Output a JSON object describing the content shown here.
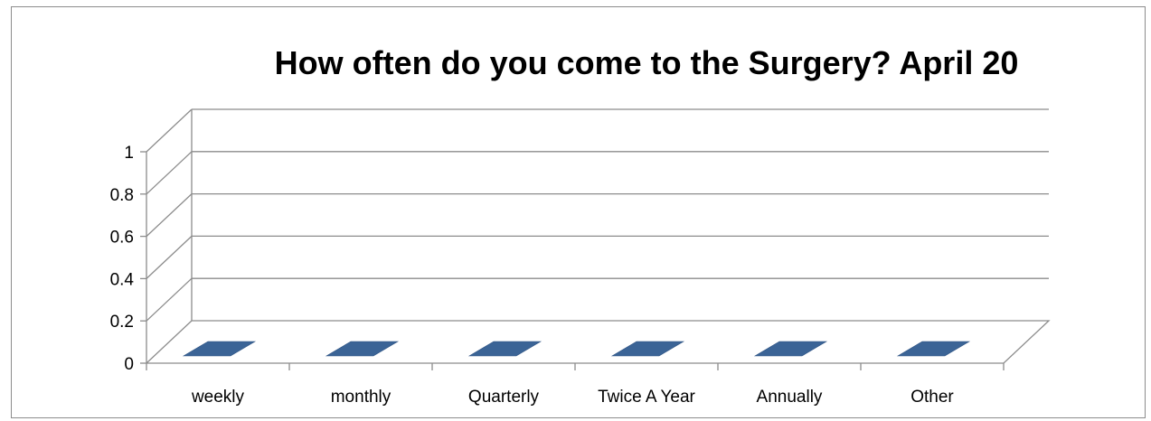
{
  "chart_data": {
    "type": "bar",
    "style": "3d-column",
    "title": "How often do you come to the Surgery? April 20",
    "categories": [
      "weekly",
      "monthly",
      "Quarterly",
      "Twice A Year",
      "Annually",
      "Other"
    ],
    "values": [
      0,
      0,
      0,
      0,
      0,
      0
    ],
    "ylim": [
      0,
      1
    ],
    "yticks": [
      "0",
      "0.2",
      "0.4",
      "0.6",
      "0.8",
      "1"
    ],
    "grid": true,
    "legend": "none",
    "colors": {
      "bar": "#3b6496",
      "gridline": "#8c8c8c",
      "axis": "#8c8c8c"
    }
  }
}
